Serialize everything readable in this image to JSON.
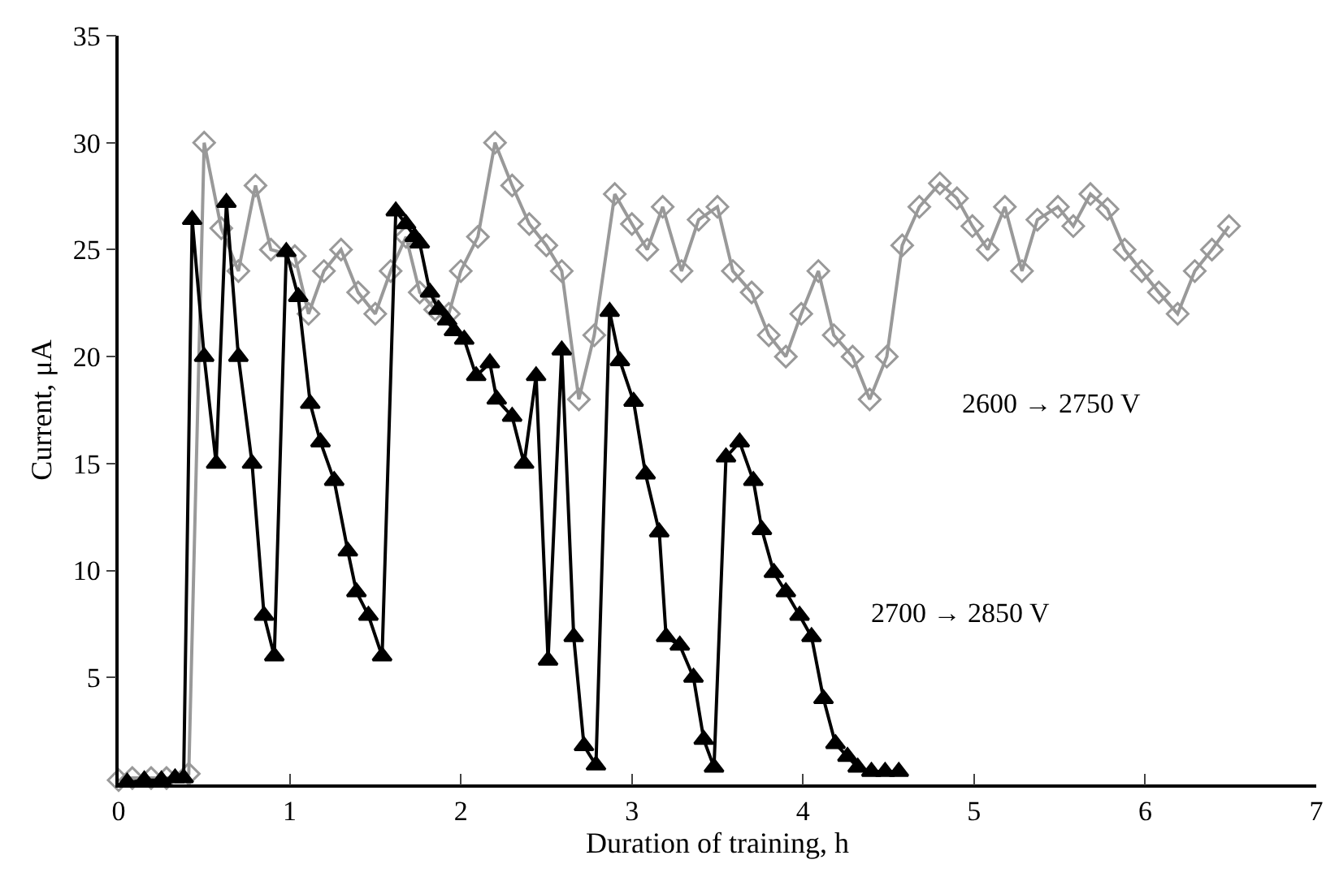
{
  "chart_data": {
    "type": "line",
    "xlabel": "Duration of training, h",
    "ylabel": "Current, μA",
    "xlim": [
      0,
      7
    ],
    "xticks": [
      0,
      1,
      2,
      3,
      4,
      5,
      6,
      7
    ],
    "ylim": [
      0,
      35
    ],
    "yticks": [
      5,
      10,
      15,
      20,
      25,
      30,
      35
    ],
    "grid": false,
    "legend": false,
    "line_style": "solid",
    "series": [
      {
        "name": "2600 → 2750 V",
        "color": "#999999",
        "marker": "diamond",
        "x": [
          0.0,
          0.08,
          0.19,
          0.28,
          0.41,
          0.5,
          0.6,
          0.7,
          0.8,
          0.89,
          1.03,
          1.11,
          1.2,
          1.3,
          1.4,
          1.5,
          1.59,
          1.68,
          1.76,
          1.85,
          1.93,
          2.0,
          2.1,
          2.2,
          2.3,
          2.4,
          2.5,
          2.59,
          2.69,
          2.78,
          2.9,
          3.0,
          3.09,
          3.18,
          3.29,
          3.39,
          3.5,
          3.59,
          3.7,
          3.8,
          3.9,
          3.99,
          4.09,
          4.18,
          4.29,
          4.39,
          4.49,
          4.58,
          4.68,
          4.8,
          4.9,
          4.99,
          5.08,
          5.18,
          5.28,
          5.37,
          5.49,
          5.58,
          5.68,
          5.78,
          5.88,
          5.98,
          6.08,
          6.19,
          6.29,
          6.39,
          6.49
        ],
        "values": [
          0.2,
          0.3,
          0.3,
          0.3,
          0.5,
          30,
          26,
          24,
          28,
          25,
          24.7,
          22,
          24,
          25,
          23,
          22,
          24,
          25.6,
          23,
          22.2,
          22,
          24,
          25.6,
          30,
          28,
          26.2,
          25.2,
          24,
          18,
          21,
          27.6,
          26.2,
          25,
          27,
          24,
          26.4,
          27,
          24,
          23,
          21,
          20,
          22,
          24,
          21,
          20,
          18,
          20,
          25.2,
          27,
          28.1,
          27.4,
          26.1,
          25,
          27,
          24,
          26.4,
          27,
          26.1,
          27.6,
          26.9,
          25,
          24,
          23,
          22,
          24,
          25,
          26.1
        ]
      },
      {
        "name": "2700 → 2850 V",
        "color": "#000000",
        "marker": "triangle",
        "x": [
          0.05,
          0.15,
          0.25,
          0.33,
          0.38,
          0.43,
          0.5,
          0.57,
          0.63,
          0.7,
          0.78,
          0.85,
          0.91,
          0.98,
          1.05,
          1.12,
          1.18,
          1.26,
          1.34,
          1.39,
          1.46,
          1.54,
          1.62,
          1.68,
          1.73,
          1.76,
          1.82,
          1.87,
          1.92,
          1.96,
          2.02,
          2.09,
          2.17,
          2.21,
          2.3,
          2.37,
          2.44,
          2.51,
          2.59,
          2.66,
          2.72,
          2.79,
          2.87,
          2.93,
          3.01,
          3.08,
          3.16,
          3.2,
          3.28,
          3.36,
          3.42,
          3.48,
          3.55,
          3.63,
          3.71,
          3.76,
          3.83,
          3.9,
          3.98,
          4.05,
          4.12,
          4.19,
          4.26,
          4.32,
          4.4,
          4.48,
          4.56
        ],
        "values": [
          0.1,
          0.2,
          0.2,
          0.3,
          0.3,
          26.4,
          20,
          15,
          27.2,
          20,
          15,
          7.9,
          6,
          24.9,
          22.8,
          17.8,
          16,
          14.2,
          10.9,
          9,
          7.9,
          6,
          26.8,
          26.2,
          25.6,
          25.3,
          23,
          22.2,
          21.7,
          21.2,
          20.8,
          19.1,
          19.7,
          18,
          17.2,
          15,
          19.1,
          5.8,
          20.3,
          6.9,
          1.8,
          0.9,
          22.1,
          19.8,
          17.9,
          14.5,
          11.8,
          6.9,
          6.5,
          5,
          2.1,
          0.8,
          15.3,
          16,
          14.2,
          11.9,
          9.9,
          9,
          7.9,
          6.9,
          4,
          1.9,
          1.3,
          0.8,
          0.6,
          0.6,
          0.6
        ]
      }
    ]
  }
}
